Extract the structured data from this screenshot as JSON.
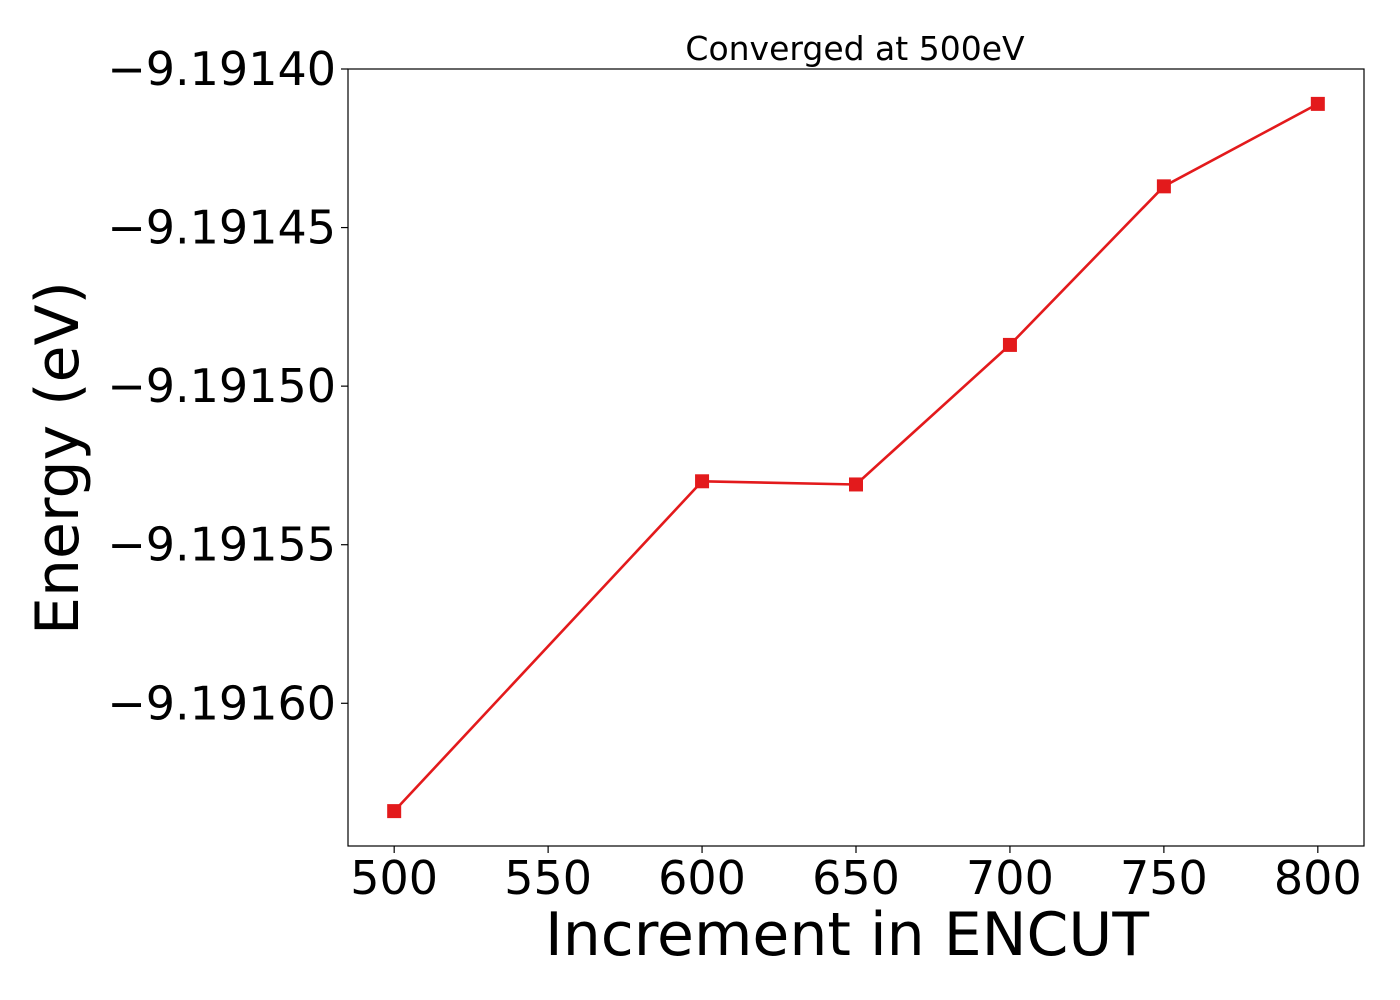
{
  "chart_data": {
    "type": "line",
    "title": "Converged at 500eV",
    "xlabel": "Increment in ENCUT",
    "ylabel": "Energy (eV)",
    "x": [
      500,
      600,
      650,
      700,
      750,
      800
    ],
    "series": [
      {
        "values": [
          -9.191634,
          -9.19153,
          -9.191531,
          -9.191487,
          -9.191437,
          -9.191411
        ],
        "color": "#e31a1c",
        "marker": "square"
      }
    ],
    "xticks": [
      500,
      550,
      600,
      650,
      700,
      750,
      800
    ],
    "xtick_labels": [
      "500",
      "550",
      "600",
      "650",
      "700",
      "750",
      "800"
    ],
    "yticks": [
      -9.1916,
      -9.19155,
      -9.1915,
      -9.19145,
      -9.1914
    ],
    "ytick_labels": [
      "−9.19160",
      "−9.19155",
      "−9.19150",
      "−9.19145",
      "−9.19140"
    ],
    "xlim": [
      485,
      815
    ],
    "ylim": [
      -9.191645,
      -9.1914
    ],
    "grid": false,
    "legend": false
  }
}
